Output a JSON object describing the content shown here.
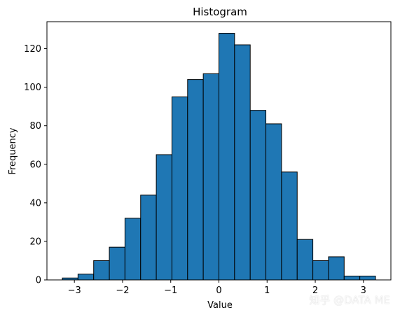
{
  "chart_data": {
    "type": "bar",
    "title": "Histogram",
    "xlabel": "Value",
    "ylabel": "Frequency",
    "bin_edges": [
      -3.25,
      -2.925,
      -2.6,
      -2.275,
      -1.95,
      -1.625,
      -1.3,
      -0.975,
      -0.65,
      -0.325,
      0.0,
      0.325,
      0.65,
      0.975,
      1.3,
      1.625,
      1.95,
      2.275,
      2.6,
      2.925,
      3.25
    ],
    "values": [
      1,
      3,
      10,
      17,
      32,
      44,
      65,
      95,
      104,
      107,
      128,
      122,
      88,
      81,
      56,
      21,
      10,
      12,
      2,
      2
    ],
    "xlim": [
      -3.57,
      3.57
    ],
    "ylim": [
      0,
      134
    ],
    "xticks": [
      -3,
      -2,
      -1,
      0,
      1,
      2,
      3
    ],
    "xtick_labels": [
      "−3",
      "−2",
      "−1",
      "0",
      "1",
      "2",
      "3"
    ],
    "yticks": [
      0,
      20,
      40,
      60,
      80,
      100,
      120
    ],
    "ytick_labels": [
      "0",
      "20",
      "40",
      "60",
      "80",
      "100",
      "120"
    ],
    "bar_color": "#1f77b4",
    "edge_color": "#000000",
    "grid": false,
    "legend": "none"
  },
  "watermark": "知乎 @DATA ME"
}
